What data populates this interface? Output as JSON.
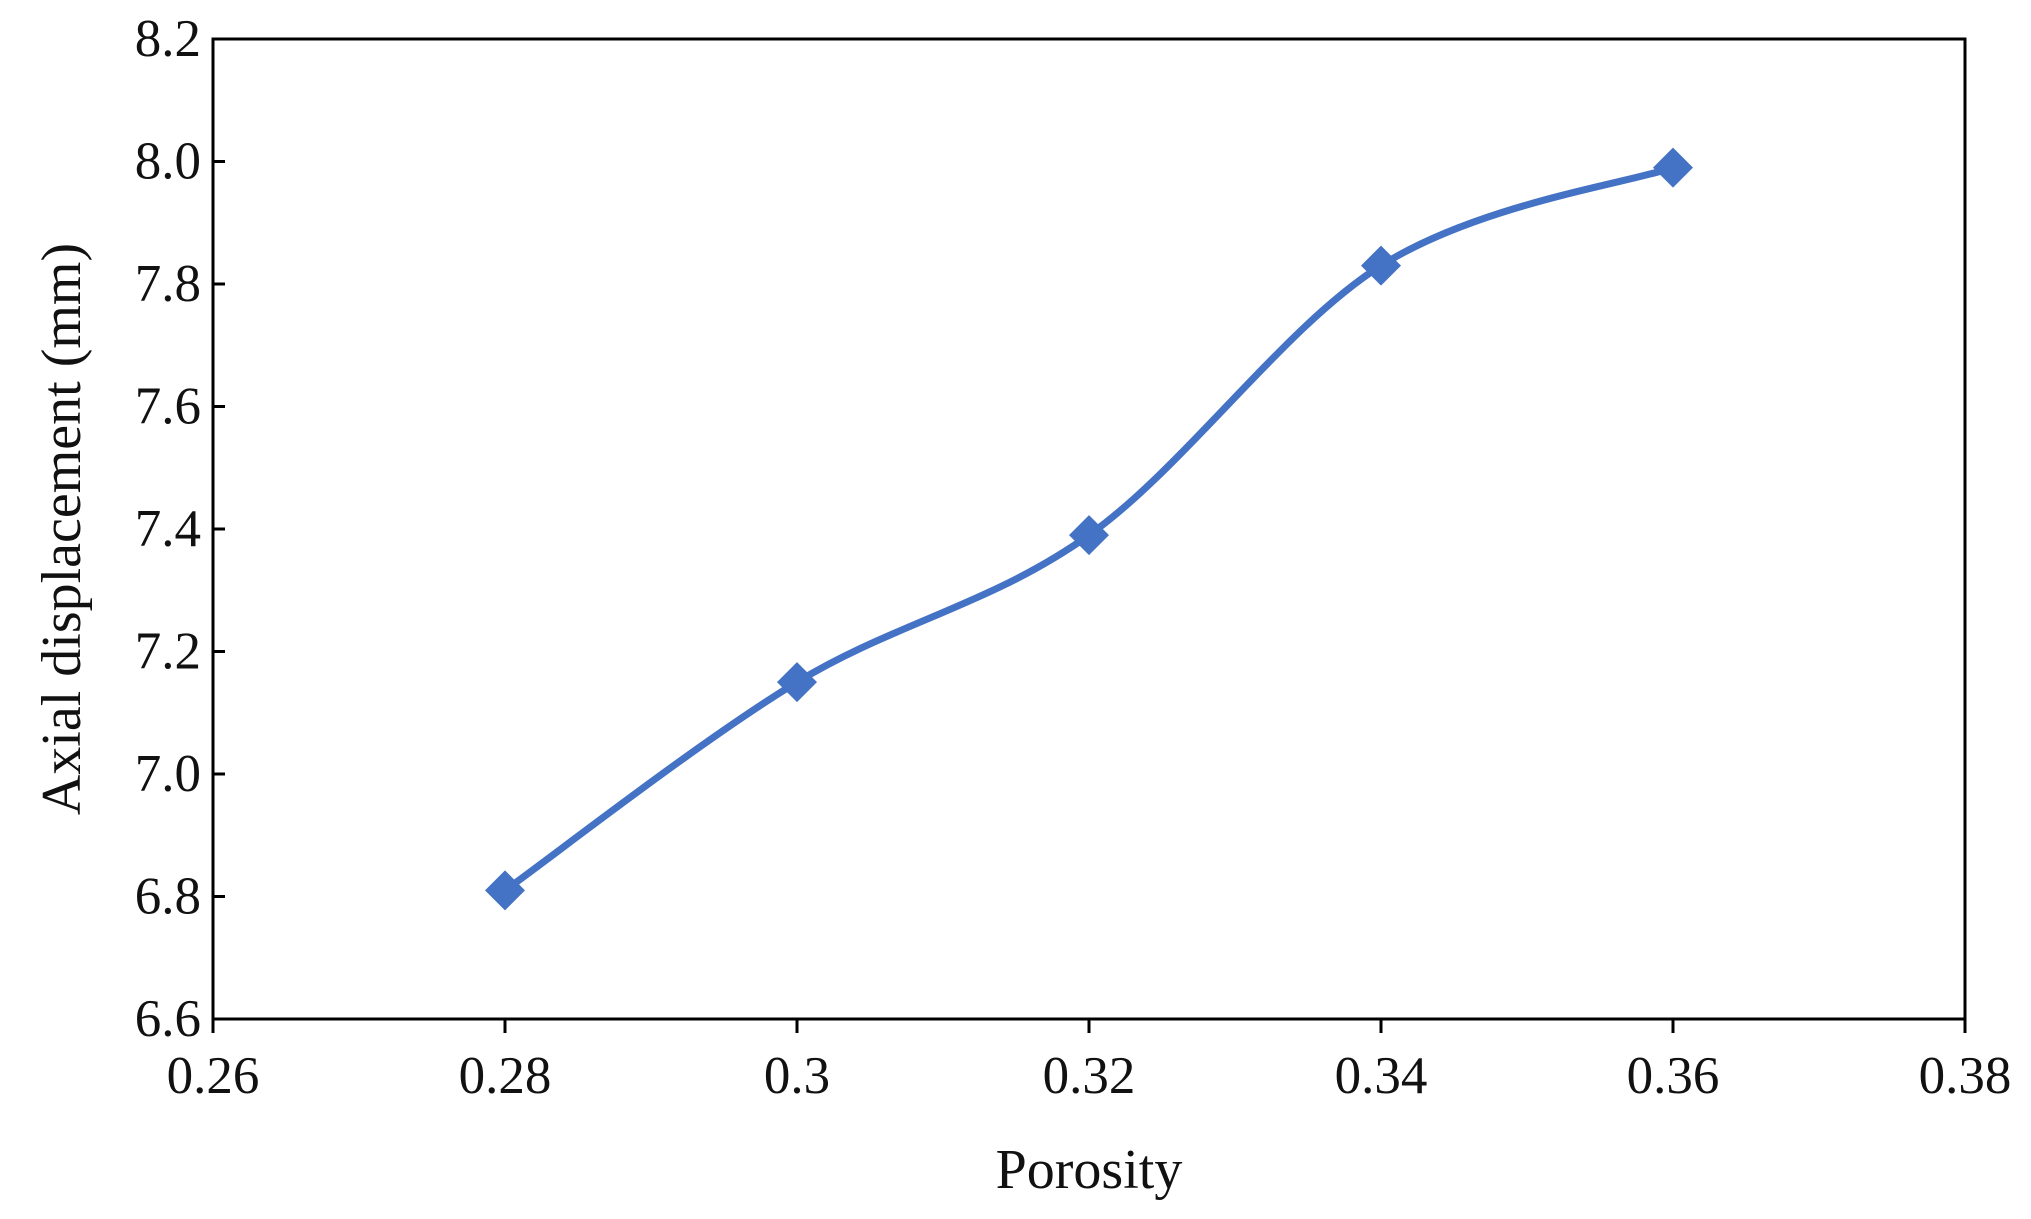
{
  "chart_data": {
    "type": "line",
    "title": "",
    "xlabel": "Porosity",
    "ylabel": "Axial displacement (mm)",
    "xlim": [
      0.26,
      0.38
    ],
    "ylim": [
      6.6,
      8.2
    ],
    "x_ticks": [
      "0.26",
      "0.28",
      "0.3",
      "0.32",
      "0.34",
      "0.36",
      "0.38"
    ],
    "y_ticks": [
      "6.6",
      "6.8",
      "7.0",
      "7.2",
      "7.4",
      "7.6",
      "7.8",
      "8.0",
      "8.2"
    ],
    "grid": false,
    "legend": "none",
    "line_style": "smoothed",
    "marker": "diamond",
    "series": [
      {
        "x": [
          0.28,
          0.3,
          0.32,
          0.34,
          0.36
        ],
        "y": [
          6.81,
          7.15,
          7.39,
          7.83,
          7.99
        ],
        "color": "#4472C4"
      }
    ]
  }
}
